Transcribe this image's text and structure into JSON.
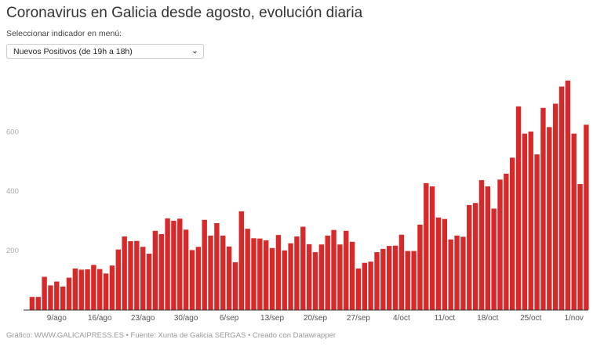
{
  "header": {
    "title": "Coronavirus en Galicia desde agosto, evolución diaria",
    "selector_label": "Seleccionar indicador en menú:",
    "selector_value": "Nuevos Positivos (de 19h a 18h)",
    "selector_icon": "chevron-down-icon"
  },
  "footer": {
    "text": "Gráfico: WWW.GALICAIPRESS.ES • Fuente: Xunta de Galicia SERGAS • Creado con Datawrapper"
  },
  "chart_data": {
    "type": "bar",
    "title": "Coronavirus en Galicia desde agosto, evolución diaria",
    "xlabel": "",
    "ylabel": "",
    "ylim": [
      0,
      800
    ],
    "grid": false,
    "bar_color": "#d7292a",
    "start_date": "5/ago",
    "end_date": "3/nov",
    "x_ticks": [
      {
        "index": 4,
        "label": "9/ago"
      },
      {
        "index": 11,
        "label": "16/ago"
      },
      {
        "index": 18,
        "label": "23/ago"
      },
      {
        "index": 25,
        "label": "30/ago"
      },
      {
        "index": 32,
        "label": "6/sep"
      },
      {
        "index": 39,
        "label": "13/sep"
      },
      {
        "index": 46,
        "label": "20/sep"
      },
      {
        "index": 53,
        "label": "27/sep"
      },
      {
        "index": 60,
        "label": "4/oct"
      },
      {
        "index": 67,
        "label": "11/oct"
      },
      {
        "index": 74,
        "label": "18/oct"
      },
      {
        "index": 81,
        "label": "25/oct"
      },
      {
        "index": 88,
        "label": "1/nov"
      }
    ],
    "y_ticks": [
      200,
      400,
      600
    ],
    "values": [
      43,
      43,
      111,
      82,
      95,
      78,
      108,
      139,
      135,
      136,
      151,
      137,
      122,
      149,
      203,
      247,
      231,
      232,
      212,
      189,
      266,
      255,
      308,
      300,
      307,
      270,
      201,
      212,
      303,
      250,
      292,
      250,
      213,
      160,
      332,
      273,
      241,
      240,
      234,
      208,
      252,
      200,
      224,
      247,
      280,
      221,
      194,
      220,
      250,
      269,
      220,
      266,
      229,
      139,
      158,
      162,
      194,
      205,
      215,
      216,
      253,
      198,
      198,
      287,
      427,
      416,
      311,
      306,
      237,
      250,
      246,
      353,
      360,
      437,
      416,
      341,
      439,
      459,
      513,
      686,
      594,
      601,
      524,
      681,
      616,
      695,
      753,
      773,
      594,
      424,
      624
    ]
  }
}
